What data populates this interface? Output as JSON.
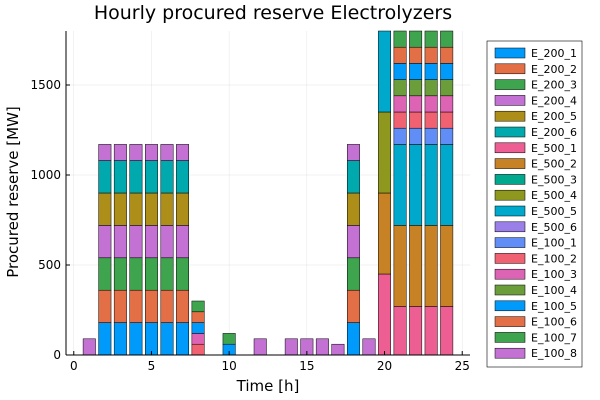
{
  "chart_data": {
    "type": "bar",
    "stacked": true,
    "title": "Hourly procured reserve Electrolyzers",
    "xlabel": "Time [h]",
    "ylabel": "Procured reserve [MW]",
    "xlim": [
      -0.5,
      25.5
    ],
    "ylim": [
      0,
      1800
    ],
    "xticks": [
      0,
      5,
      10,
      15,
      20,
      25
    ],
    "yticks": [
      0,
      500,
      1000,
      1500
    ],
    "grid": true,
    "legend_position": "right",
    "x": [
      1,
      2,
      3,
      4,
      5,
      6,
      7,
      8,
      9,
      10,
      11,
      12,
      13,
      14,
      15,
      16,
      17,
      18,
      19,
      20,
      21,
      22,
      23,
      24
    ],
    "series": [
      {
        "name": "E_200_1",
        "color": "#009AFA",
        "values": [
          0,
          180,
          180,
          180,
          180,
          180,
          180,
          0,
          0,
          0,
          0,
          0,
          0,
          0,
          0,
          0,
          0,
          180,
          0,
          0,
          0,
          0,
          0,
          0
        ]
      },
      {
        "name": "E_200_2",
        "color": "#E36F47",
        "values": [
          0,
          180,
          180,
          180,
          180,
          180,
          180,
          0,
          0,
          0,
          0,
          0,
          0,
          0,
          0,
          0,
          0,
          180,
          0,
          0,
          0,
          0,
          0,
          0
        ]
      },
      {
        "name": "E_200_3",
        "color": "#3EA44E",
        "values": [
          0,
          180,
          180,
          180,
          180,
          180,
          180,
          0,
          0,
          0,
          0,
          0,
          0,
          0,
          0,
          0,
          0,
          180,
          0,
          0,
          0,
          0,
          0,
          0
        ]
      },
      {
        "name": "E_200_4",
        "color": "#C371D2",
        "values": [
          0,
          180,
          180,
          180,
          180,
          180,
          180,
          0,
          0,
          0,
          0,
          0,
          0,
          0,
          0,
          0,
          0,
          180,
          0,
          0,
          0,
          0,
          0,
          0
        ]
      },
      {
        "name": "E_200_5",
        "color": "#AC8E18",
        "values": [
          0,
          180,
          180,
          180,
          180,
          180,
          180,
          0,
          0,
          0,
          0,
          0,
          0,
          0,
          0,
          0,
          0,
          180,
          0,
          0,
          0,
          0,
          0,
          0
        ]
      },
      {
        "name": "E_200_6",
        "color": "#00A9AD",
        "values": [
          0,
          180,
          180,
          180,
          180,
          180,
          180,
          0,
          0,
          0,
          0,
          0,
          0,
          0,
          0,
          0,
          0,
          180,
          0,
          0,
          0,
          0,
          0,
          0
        ]
      },
      {
        "name": "E_500_1",
        "color": "#ED5E93",
        "values": [
          0,
          0,
          0,
          0,
          0,
          0,
          0,
          0,
          0,
          0,
          0,
          0,
          0,
          0,
          0,
          0,
          0,
          0,
          0,
          450,
          270,
          270,
          270,
          270
        ]
      },
      {
        "name": "E_500_2",
        "color": "#C68225",
        "values": [
          0,
          0,
          0,
          0,
          0,
          0,
          0,
          0,
          0,
          0,
          0,
          0,
          0,
          0,
          0,
          0,
          0,
          0,
          0,
          450,
          450,
          450,
          450,
          450
        ]
      },
      {
        "name": "E_500_3",
        "color": "#00A98D",
        "values": [
          0,
          0,
          0,
          0,
          0,
          0,
          0,
          0,
          0,
          0,
          0,
          0,
          0,
          0,
          0,
          0,
          0,
          0,
          0,
          0,
          0,
          0,
          0,
          0
        ]
      },
      {
        "name": "E_500_4",
        "color": "#8E971E",
        "values": [
          0,
          0,
          0,
          0,
          0,
          0,
          0,
          0,
          0,
          0,
          0,
          0,
          0,
          0,
          0,
          0,
          0,
          0,
          0,
          450,
          0,
          0,
          0,
          0
        ]
      },
      {
        "name": "E_500_5",
        "color": "#00A8CB",
        "values": [
          0,
          0,
          0,
          0,
          0,
          0,
          0,
          0,
          0,
          0,
          0,
          0,
          0,
          0,
          0,
          0,
          0,
          0,
          0,
          450,
          450,
          450,
          450,
          450
        ]
      },
      {
        "name": "E_500_6",
        "color": "#9B7FE9",
        "values": [
          0,
          0,
          0,
          0,
          0,
          0,
          0,
          0,
          0,
          0,
          0,
          0,
          0,
          0,
          0,
          0,
          0,
          0,
          0,
          0,
          0,
          0,
          0,
          0
        ]
      },
      {
        "name": "E_100_1",
        "color": "#618DF6",
        "values": [
          0,
          0,
          0,
          0,
          0,
          0,
          0,
          0,
          0,
          0,
          0,
          0,
          0,
          0,
          0,
          0,
          0,
          0,
          0,
          0,
          90,
          90,
          90,
          90
        ]
      },
      {
        "name": "E_100_2",
        "color": "#F06171",
        "values": [
          0,
          0,
          0,
          0,
          0,
          0,
          0,
          60,
          0,
          0,
          0,
          0,
          0,
          0,
          0,
          0,
          0,
          0,
          0,
          0,
          90,
          90,
          90,
          90
        ]
      },
      {
        "name": "E_100_3",
        "color": "#DD64B5",
        "values": [
          0,
          0,
          0,
          0,
          0,
          0,
          0,
          60,
          0,
          0,
          0,
          0,
          0,
          0,
          0,
          0,
          0,
          0,
          0,
          0,
          90,
          90,
          90,
          90
        ]
      },
      {
        "name": "E_100_4",
        "color": "#6B9D3B",
        "values": [
          0,
          0,
          0,
          0,
          0,
          0,
          0,
          0,
          0,
          0,
          0,
          0,
          0,
          0,
          0,
          0,
          0,
          0,
          0,
          0,
          90,
          90,
          90,
          90
        ]
      },
      {
        "name": "E_100_5",
        "color": "#009AFA",
        "values": [
          0,
          0,
          0,
          0,
          0,
          0,
          0,
          60,
          0,
          60,
          0,
          0,
          0,
          0,
          0,
          0,
          0,
          0,
          0,
          0,
          90,
          90,
          90,
          90
        ]
      },
      {
        "name": "E_100_6",
        "color": "#E36F47",
        "values": [
          0,
          0,
          0,
          0,
          0,
          0,
          0,
          60,
          0,
          0,
          0,
          0,
          0,
          0,
          0,
          0,
          0,
          0,
          0,
          0,
          90,
          90,
          90,
          90
        ]
      },
      {
        "name": "E_100_7",
        "color": "#3EA44E",
        "values": [
          0,
          0,
          0,
          0,
          0,
          0,
          0,
          60,
          0,
          60,
          0,
          0,
          0,
          0,
          0,
          0,
          0,
          0,
          0,
          0,
          90,
          90,
          90,
          90
        ]
      },
      {
        "name": "E_100_8",
        "color": "#C371D2",
        "values": [
          90,
          90,
          90,
          90,
          90,
          90,
          90,
          0,
          0,
          0,
          0,
          90,
          0,
          90,
          90,
          90,
          60,
          90,
          90,
          0,
          0,
          0,
          0,
          0
        ]
      }
    ]
  }
}
